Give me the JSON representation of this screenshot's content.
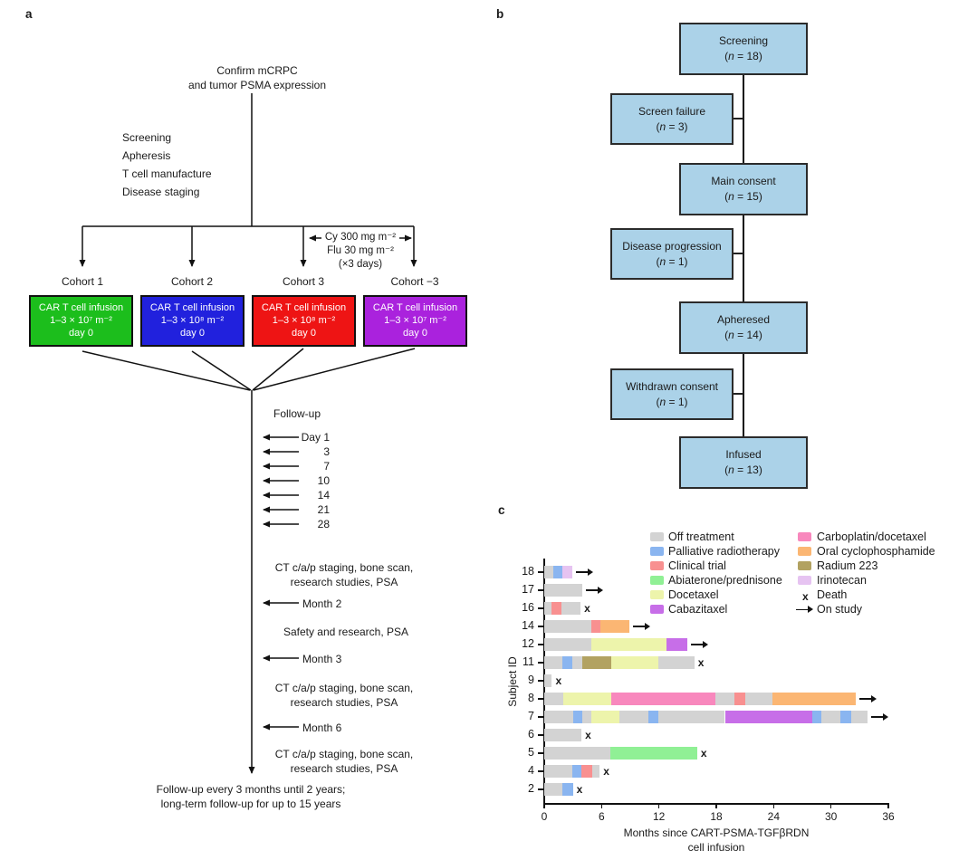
{
  "panels": {
    "a": {
      "label": "a",
      "title_lines": [
        "Confirm mCRPC",
        "and tumor PSMA expression"
      ],
      "prep_steps": [
        "Screening",
        "Apheresis",
        "T cell manufacture",
        "Disease staging"
      ],
      "conditioning_lines": [
        "Cy 300 mg m⁻²",
        "Flu 30 mg m⁻²",
        "(×3 days)"
      ],
      "cohorts": [
        {
          "name": "Cohort 1",
          "color": "#1cbe1c",
          "lines": [
            "CAR T cell infusion",
            "1–3 × 10⁷ m⁻²",
            "day 0"
          ]
        },
        {
          "name": "Cohort 2",
          "color": "#2121dd",
          "lines": [
            "CAR T cell infusion",
            "1–3 × 10⁸ m⁻²",
            "day 0"
          ]
        },
        {
          "name": "Cohort 3",
          "color": "#ee1414",
          "lines": [
            "CAR T cell infusion",
            "1–3 × 10⁸ m⁻²",
            "day 0"
          ]
        },
        {
          "name": "Cohort −3",
          "color": "#aa22dd",
          "lines": [
            "CAR T cell infusion",
            "1–3 × 10⁷ m⁻²",
            "day 0"
          ]
        }
      ],
      "followup_label": "Follow-up",
      "day_labels": [
        "Day 1",
        "3",
        "7",
        "10",
        "14",
        "21",
        "28"
      ],
      "checkpoints": {
        "ct1_lines": [
          "CT c/a/p staging, bone scan,",
          "research studies, PSA"
        ],
        "month2": "Month 2",
        "safety": "Safety and research, PSA",
        "month3": "Month 3",
        "ct2_lines": [
          "CT c/a/p staging, bone scan,",
          "research studies, PSA"
        ],
        "month6": "Month 6",
        "ct3_lines": [
          "CT c/a/p staging, bone scan,",
          "research studies, PSA"
        ]
      },
      "footer_lines": [
        "Follow-up every 3 months until 2 years;",
        "long-term follow-up for up to 15 years"
      ]
    },
    "b": {
      "label": "b",
      "box_fill": "#abd2e8",
      "boxes": [
        {
          "label": "Screening",
          "n": "18",
          "side": "main"
        },
        {
          "label": "Screen failure",
          "n": "3",
          "side": "left"
        },
        {
          "label": "Main consent",
          "n": "15",
          "side": "main"
        },
        {
          "label": "Disease progression",
          "n": "1",
          "side": "left"
        },
        {
          "label": "Apheresed",
          "n": "14",
          "side": "main"
        },
        {
          "label": "Withdrawn consent",
          "n": "1",
          "side": "left"
        },
        {
          "label": "Infused",
          "n": "13",
          "side": "main"
        }
      ]
    },
    "c": {
      "label": "c"
    }
  },
  "chart_data": {
    "type": "bar",
    "variant": "horizontal-stacked-swimmer",
    "xlabel_lines": [
      "Months since CART-PSMA-TGFβRDN",
      "cell infusion"
    ],
    "ylabel": "Subject ID",
    "xlim": [
      0,
      36
    ],
    "xticks": [
      0,
      6,
      12,
      18,
      24,
      30,
      36
    ],
    "legend": {
      "col1": [
        {
          "label": "Off treatment",
          "color": "#d3d3d3"
        },
        {
          "label": "Palliative radiotherapy",
          "color": "#8ab5f0"
        },
        {
          "label": "Clinical trial",
          "color": "#f89090"
        },
        {
          "label": "Abiaterone/prednisone",
          "color": "#90f095"
        },
        {
          "label": "Docetaxel",
          "color": "#edf4ab"
        },
        {
          "label": "Cabazitaxel",
          "color": "#c76ee8"
        }
      ],
      "col2": [
        {
          "label": "Carboplatin/docetaxel",
          "color": "#f888bd"
        },
        {
          "label": "Oral cyclophosphamide",
          "color": "#fbb673"
        },
        {
          "label": "Radium 223",
          "color": "#b2a261"
        },
        {
          "label": "Irinotecan",
          "color": "#e6c3f1"
        },
        {
          "label": "Death",
          "marker": "x"
        },
        {
          "label": "On study",
          "marker": "arrow"
        }
      ]
    },
    "subjects": [
      {
        "id": "18",
        "end": "on_study",
        "segments": [
          [
            "Off treatment",
            0,
            0.9
          ],
          [
            "Palliative radiotherapy",
            0.9,
            1.9
          ],
          [
            "Irinotecan",
            1.9,
            2.9
          ]
        ]
      },
      {
        "id": "17",
        "end": "on_study",
        "segments": [
          [
            "Off treatment",
            0,
            4
          ]
        ]
      },
      {
        "id": "16",
        "end": "death",
        "segments": [
          [
            "Off treatment",
            0,
            0.8
          ],
          [
            "Clinical trial",
            0.8,
            1.8
          ],
          [
            "Off treatment",
            1.8,
            3.8
          ]
        ]
      },
      {
        "id": "14",
        "end": "on_study",
        "segments": [
          [
            "Off treatment",
            0,
            4.9
          ],
          [
            "Clinical trial",
            4.9,
            5.9
          ],
          [
            "Oral cyclophosphamide",
            5.9,
            8.9
          ]
        ]
      },
      {
        "id": "12",
        "end": "on_study",
        "segments": [
          [
            "Off treatment",
            0,
            4.9
          ],
          [
            "Docetaxel",
            4.9,
            12.8
          ],
          [
            "Cabazitaxel",
            12.8,
            15
          ]
        ]
      },
      {
        "id": "11",
        "end": "death",
        "segments": [
          [
            "Off treatment",
            0,
            1.9
          ],
          [
            "Palliative radiotherapy",
            1.9,
            2.9
          ],
          [
            "Off treatment",
            2.9,
            4
          ],
          [
            "Radium 223",
            4,
            7
          ],
          [
            "Docetaxel",
            7,
            11.9
          ],
          [
            "Off treatment",
            11.9,
            15.7
          ]
        ]
      },
      {
        "id": "9",
        "end": "death",
        "segments": [
          [
            "Off treatment",
            0,
            0.8
          ]
        ]
      },
      {
        "id": "8",
        "end": "on_study",
        "segments": [
          [
            "Off treatment",
            0,
            2
          ],
          [
            "Docetaxel",
            2,
            7
          ],
          [
            "Carboplatin/docetaxel",
            7,
            17.9
          ],
          [
            "Off treatment",
            17.9,
            19.9
          ],
          [
            "Clinical trial",
            19.9,
            21
          ],
          [
            "Off treatment",
            21,
            23.9
          ],
          [
            "Oral cyclophosphamide",
            23.9,
            32.6
          ]
        ]
      },
      {
        "id": "7",
        "end": "on_study",
        "segments": [
          [
            "Off treatment",
            0,
            3
          ],
          [
            "Palliative radiotherapy",
            3,
            4
          ],
          [
            "Off treatment",
            4,
            4.9
          ],
          [
            "Docetaxel",
            4.9,
            7.9
          ],
          [
            "Off treatment",
            7.9,
            10.9
          ],
          [
            "Palliative radiotherapy",
            10.9,
            11.9
          ],
          [
            "Off treatment",
            11.9,
            18.9
          ],
          [
            "Cabazitaxel",
            18.9,
            28
          ],
          [
            "Palliative radiotherapy",
            28,
            29
          ],
          [
            "Off treatment",
            29,
            31
          ],
          [
            "Palliative radiotherapy",
            31,
            32.1
          ],
          [
            "Off treatment",
            32.1,
            33.8
          ]
        ]
      },
      {
        "id": "6",
        "end": "death",
        "segments": [
          [
            "Off treatment",
            0,
            3.9
          ]
        ]
      },
      {
        "id": "5",
        "end": "death",
        "segments": [
          [
            "Off treatment",
            0,
            6.9
          ],
          [
            "Abiaterone/prednisone",
            6.9,
            16
          ]
        ]
      },
      {
        "id": "4",
        "end": "death",
        "segments": [
          [
            "Off treatment",
            0,
            2.9
          ],
          [
            "Palliative radiotherapy",
            2.9,
            3.9
          ],
          [
            "Clinical trial",
            3.9,
            5
          ],
          [
            "Off treatment",
            5,
            5.8
          ]
        ]
      },
      {
        "id": "2",
        "end": "death",
        "segments": [
          [
            "Off treatment",
            0,
            1.9
          ],
          [
            "Palliative radiotherapy",
            1.9,
            3
          ]
        ]
      }
    ]
  }
}
